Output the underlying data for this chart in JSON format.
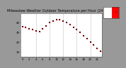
{
  "title": "Milwaukee Weather Outdoor Temperature per Hour (24 Hours)",
  "hours": [
    0,
    1,
    2,
    3,
    4,
    5,
    6,
    7,
    8,
    9,
    10,
    11,
    12,
    13,
    14,
    15,
    16,
    17,
    18,
    19,
    20,
    21,
    22,
    23
  ],
  "temps": [
    36,
    35,
    34,
    33,
    32,
    31,
    34,
    37,
    40,
    42,
    43,
    43,
    42,
    40,
    38,
    35,
    33,
    30,
    27,
    24,
    20,
    17,
    14,
    11
  ],
  "dot_color_main": "#cc0000",
  "dot_color_dark": "#330000",
  "bg_color": "#ffffff",
  "outer_bg": "#999999",
  "grid_color": "#888888",
  "grid_positions": [
    4,
    8,
    12,
    16,
    20
  ],
  "ylim": [
    5,
    50
  ],
  "xlim": [
    -0.5,
    23.5
  ],
  "yticks": [
    10,
    20,
    30,
    40
  ],
  "title_fontsize": 3.5,
  "tick_fontsize": 2.8,
  "legend_bg": "#ff0000",
  "legend_inner": "#ffffff"
}
